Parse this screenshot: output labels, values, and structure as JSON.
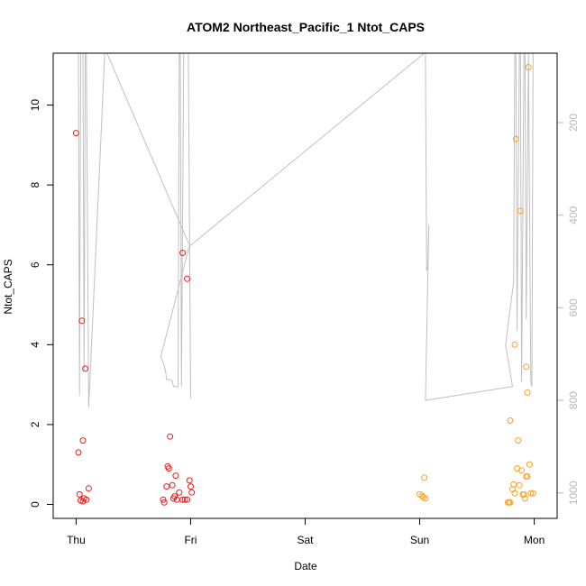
{
  "chart_data": {
    "type": "scatter",
    "title": "ATOM2 Northeast_Pacific_1 Ntot_CAPS",
    "xlabel": "Date",
    "ylabel": "Ntot_CAPS",
    "x_ticks": [
      {
        "label": "Thu",
        "value": 0
      },
      {
        "label": "Fri",
        "value": 1
      },
      {
        "label": "Sat",
        "value": 2
      },
      {
        "label": "Sun",
        "value": 3
      },
      {
        "label": "Mon",
        "value": 4
      }
    ],
    "xlim": [
      -0.2,
      4.2
    ],
    "ylim": [
      -0.35,
      11.3
    ],
    "y_ticks": [
      0,
      2,
      4,
      6,
      8,
      10
    ],
    "y2lim": [
      1055,
      50
    ],
    "y2_ticks": [
      200,
      400,
      600,
      800,
      1000
    ],
    "grid": false,
    "series": [
      {
        "color": "#ee1c1c",
        "points": [
          [
            0.0,
            9.3
          ],
          [
            0.05,
            4.6
          ],
          [
            0.08,
            3.4
          ],
          [
            0.02,
            1.3
          ],
          [
            0.06,
            1.6
          ],
          [
            0.03,
            0.25
          ],
          [
            0.11,
            0.4
          ],
          [
            0.04,
            0.1
          ],
          [
            0.07,
            0.15
          ],
          [
            0.09,
            0.12
          ],
          [
            0.06,
            0.08
          ],
          [
            0.93,
            6.3
          ],
          [
            0.97,
            5.65
          ],
          [
            0.82,
            1.7
          ],
          [
            0.8,
            0.95
          ],
          [
            0.81,
            0.9
          ],
          [
            0.87,
            0.72
          ],
          [
            0.99,
            0.6
          ],
          [
            0.84,
            0.48
          ],
          [
            0.79,
            0.45
          ],
          [
            1.0,
            0.45
          ],
          [
            1.01,
            0.3
          ],
          [
            0.9,
            0.3
          ],
          [
            0.86,
            0.2
          ],
          [
            0.85,
            0.15
          ],
          [
            0.88,
            0.12
          ],
          [
            0.93,
            0.12
          ],
          [
            0.95,
            0.12
          ],
          [
            0.97,
            0.12
          ],
          [
            0.76,
            0.12
          ],
          [
            0.77,
            0.05
          ]
        ]
      },
      {
        "color": "#ffa020",
        "points": [
          [
            3.04,
            0.67
          ],
          [
            3.0,
            0.25
          ],
          [
            3.02,
            0.22
          ],
          [
            3.03,
            0.18
          ],
          [
            3.05,
            0.15
          ],
          [
            3.95,
            10.95
          ],
          [
            3.84,
            9.15
          ],
          [
            3.88,
            7.35
          ],
          [
            3.83,
            4.0
          ],
          [
            3.93,
            3.45
          ],
          [
            3.94,
            2.8
          ],
          [
            3.79,
            2.1
          ],
          [
            3.86,
            1.6
          ],
          [
            3.96,
            1.0
          ],
          [
            3.85,
            0.9
          ],
          [
            3.89,
            0.85
          ],
          [
            3.93,
            0.7
          ],
          [
            3.94,
            0.7
          ],
          [
            3.82,
            0.5
          ],
          [
            3.87,
            0.48
          ],
          [
            3.81,
            0.38
          ],
          [
            3.83,
            0.28
          ],
          [
            3.97,
            0.28
          ],
          [
            3.99,
            0.28
          ],
          [
            3.9,
            0.25
          ],
          [
            3.91,
            0.25
          ],
          [
            3.92,
            0.15
          ],
          [
            3.77,
            0.05
          ],
          [
            3.79,
            0.05
          ],
          [
            3.78,
            0.05
          ]
        ]
      }
    ],
    "depth_series": {
      "color": "#c0c0c0",
      "points": [
        [
          -0.02,
          50
        ],
        [
          0.02,
          50
        ],
        [
          0.03,
          790
        ],
        [
          0.04,
          50
        ],
        [
          0.06,
          50
        ],
        [
          0.07,
          735
        ],
        [
          0.08,
          50
        ],
        [
          0.09,
          50
        ],
        [
          0.11,
          815
        ],
        [
          0.25,
          50
        ],
        [
          0.27,
          50
        ],
        [
          0.99,
          465
        ],
        [
          0.74,
          705
        ],
        [
          0.75,
          710
        ],
        [
          0.78,
          735
        ],
        [
          0.79,
          755
        ],
        [
          0.82,
          755
        ],
        [
          0.84,
          758
        ],
        [
          0.85,
          770
        ],
        [
          0.89,
          770
        ],
        [
          0.9,
          50
        ],
        [
          0.91,
          50
        ],
        [
          0.92,
          770
        ],
        [
          0.94,
          50
        ],
        [
          0.96,
          50
        ],
        [
          0.98,
          50
        ],
        [
          1.0,
          795
        ],
        [
          0.99,
          465
        ],
        [
          1.0,
          465
        ],
        [
          3.04,
          50
        ],
        [
          3.05,
          50
        ],
        [
          3.06,
          520
        ],
        [
          3.07,
          510
        ],
        [
          3.08,
          420
        ],
        [
          3.05,
          800
        ],
        [
          3.81,
          770
        ],
        [
          3.75,
          680
        ],
        [
          3.82,
          545
        ],
        [
          3.83,
          50
        ],
        [
          3.84,
          50
        ],
        [
          3.85,
          650
        ],
        [
          3.87,
          50
        ],
        [
          3.88,
          50
        ],
        [
          3.89,
          760
        ],
        [
          3.91,
          50
        ],
        [
          3.92,
          50
        ],
        [
          3.93,
          625
        ],
        [
          3.95,
          50
        ],
        [
          3.97,
          760
        ],
        [
          3.98,
          770
        ],
        [
          3.99,
          50
        ]
      ]
    }
  }
}
